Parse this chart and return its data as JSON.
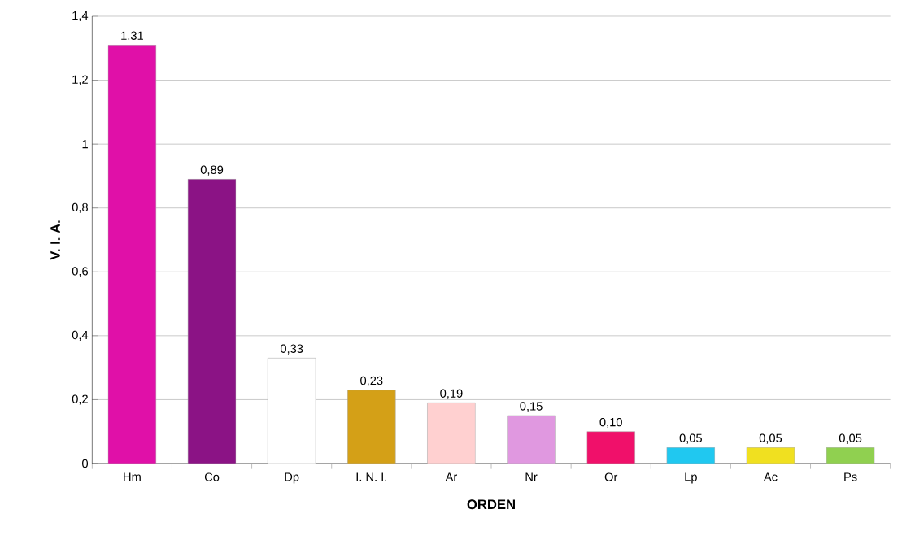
{
  "chart_data": {
    "type": "bar",
    "xlabel": "ORDEN",
    "ylabel": "V. I. A.",
    "categories": [
      "Hm",
      "Co",
      "Dp",
      "I. N. I.",
      "Ar",
      "Nr",
      "Or",
      "Lp",
      "Ac",
      "Ps"
    ],
    "values": [
      1.31,
      0.89,
      0.33,
      0.23,
      0.19,
      0.15,
      0.1,
      0.05,
      0.05,
      0.05
    ],
    "value_labels": [
      "1,31",
      "0,89",
      "0,33",
      "0,23",
      "0,19",
      "0,15",
      "0,10",
      "0,05",
      "0,05",
      "0,05"
    ],
    "colors": [
      "#e010a8",
      "#8b1385",
      "#ffffff",
      "#d4a017",
      "#ffd0d0",
      "#e098e0",
      "#f0106a",
      "#20c8f0",
      "#f0e020",
      "#90d050"
    ],
    "ylim": [
      0,
      1.4
    ],
    "yticks": [
      0,
      {
        "value": 0.2,
        "label": "0,2"
      },
      {
        "value": 0.4,
        "label": "0,4"
      },
      {
        "value": 0.6,
        "label": "0,6"
      },
      {
        "value": 0.8,
        "label": "0,8"
      },
      1,
      {
        "value": 1.2,
        "label": "1,2"
      },
      {
        "value": 1.4,
        "label": "1,4"
      }
    ],
    "grid": "y"
  }
}
